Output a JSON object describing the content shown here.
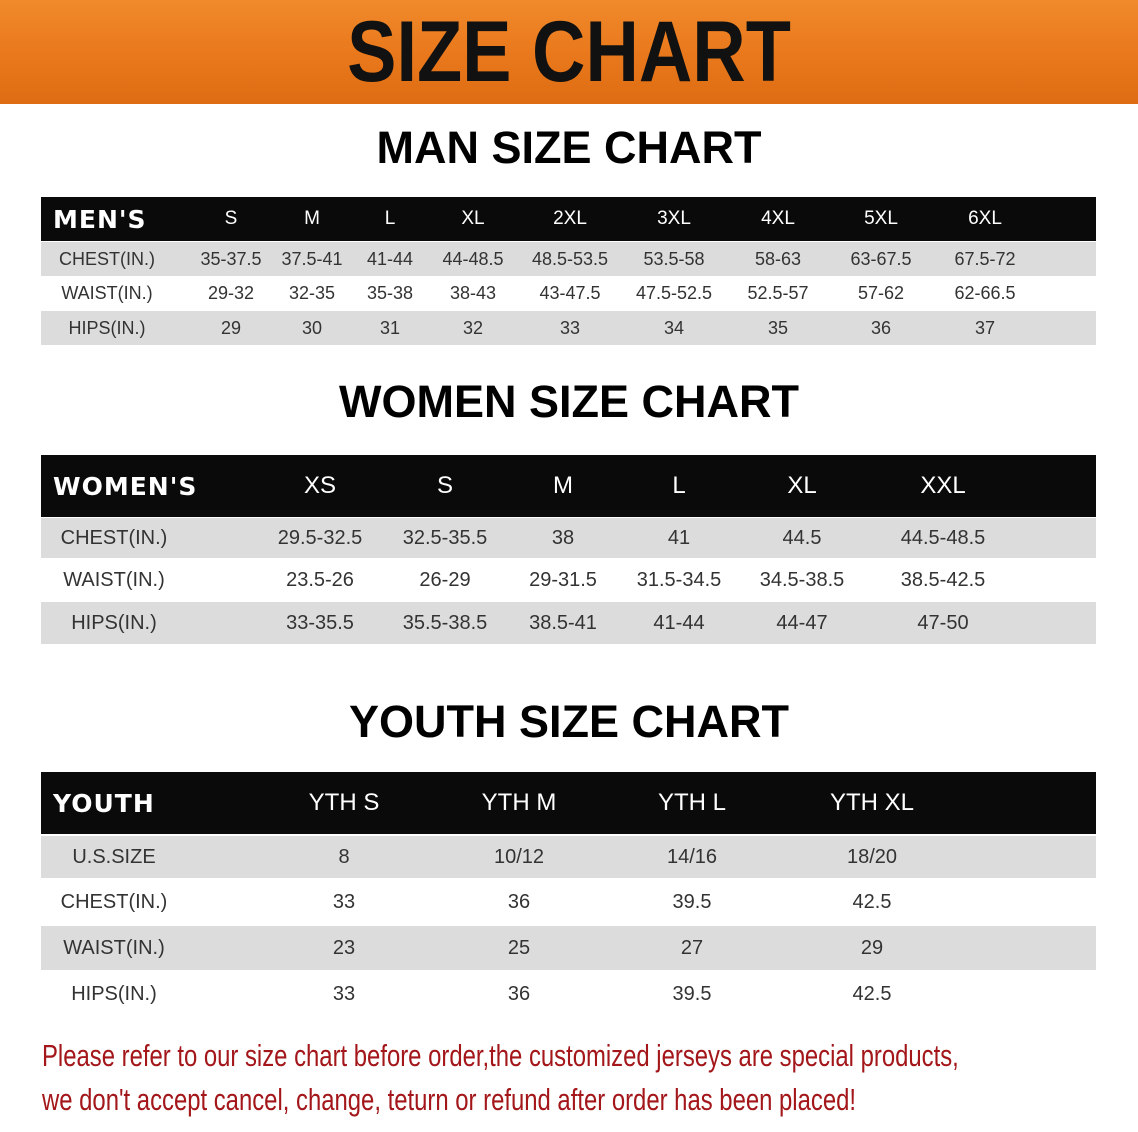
{
  "banner": {
    "title": "SIZE CHART",
    "color": "#e8761a"
  },
  "men": {
    "title": "MAN SIZE CHART",
    "header": "MEN'S",
    "sizes": [
      "S",
      "M",
      "L",
      "XL",
      "2XL",
      "3XL",
      "4XL",
      "5XL",
      "6XL"
    ],
    "rows": [
      {
        "label": "CHEST(IN.)",
        "values": [
          "35-37.5",
          "37.5-41",
          "41-44",
          "44-48.5",
          "48.5-53.5",
          "53.5-58",
          "58-63",
          "63-67.5",
          "67.5-72"
        ]
      },
      {
        "label": "WAIST(IN.)",
        "values": [
          "29-32",
          "32-35",
          "35-38",
          "38-43",
          "43-47.5",
          "47.5-52.5",
          "52.5-57",
          "57-62",
          "62-66.5"
        ]
      },
      {
        "label": "HIPS(IN.)",
        "values": [
          "29",
          "30",
          "31",
          "32",
          "33",
          "34",
          "35",
          "36",
          "37"
        ]
      }
    ]
  },
  "women": {
    "title": "WOMEN SIZE CHART",
    "header": "WOMEN'S",
    "sizes": [
      "XS",
      "S",
      "M",
      "L",
      "XL",
      "XXL"
    ],
    "rows": [
      {
        "label": "CHEST(IN.)",
        "values": [
          "29.5-32.5",
          "32.5-35.5",
          "38",
          "41",
          "44.5",
          "44.5-48.5"
        ]
      },
      {
        "label": "WAIST(IN.)",
        "values": [
          "23.5-26",
          "26-29",
          "29-31.5",
          "31.5-34.5",
          "34.5-38.5",
          "38.5-42.5"
        ]
      },
      {
        "label": "HIPS(IN.)",
        "values": [
          "33-35.5",
          "35.5-38.5",
          "38.5-41",
          "41-44",
          "44-47",
          "47-50"
        ]
      }
    ]
  },
  "youth": {
    "title": "YOUTH SIZE CHART",
    "header": "YOUTH",
    "sizes": [
      "YTH S",
      "YTH M",
      "YTH L",
      "YTH XL"
    ],
    "rows": [
      {
        "label": "U.S.SIZE",
        "values": [
          "8",
          "10/12",
          "14/16",
          "18/20"
        ]
      },
      {
        "label": "CHEST(IN.)",
        "values": [
          "33",
          "36",
          "39.5",
          "42.5"
        ]
      },
      {
        "label": "WAIST(IN.)",
        "values": [
          "23",
          "25",
          "27",
          "29"
        ]
      },
      {
        "label": "HIPS(IN.)",
        "values": [
          "33",
          "36",
          "39.5",
          "42.5"
        ]
      }
    ]
  },
  "notice": {
    "line1": "Please refer to our size chart before order,the customized jerseys are special products,",
    "line2": "we don't accept cancel, change, teturn or refund after order has been placed!",
    "color": "#a3161a"
  }
}
